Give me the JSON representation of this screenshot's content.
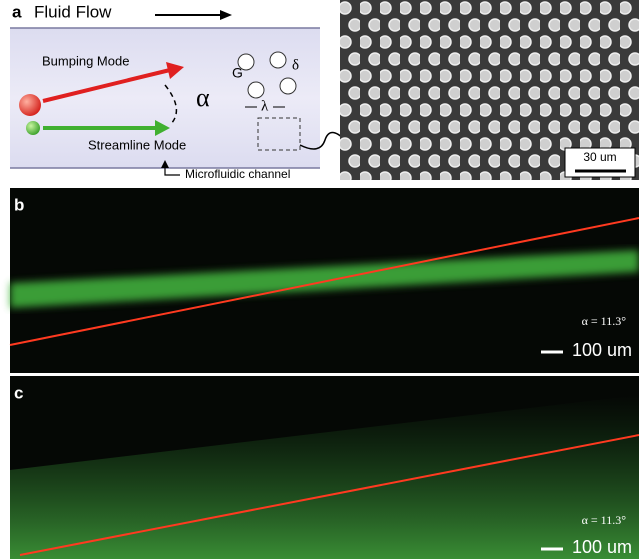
{
  "panel_a": {
    "label": "a",
    "title": "Fluid Flow",
    "bumping_mode": "Bumping Mode",
    "streamline_mode": "Streamline Mode",
    "angle": "α",
    "gap": "G",
    "offset": "δ",
    "pitch": "λ",
    "channel": "Microfluidic channel",
    "scale_bar": "30 um"
  },
  "panel_b": {
    "label": "b",
    "angle_text": "α = 11.3°",
    "scale_bar": "100 um"
  },
  "panel_c": {
    "label": "c",
    "angle_text": "α = 11.3°",
    "scale_bar": "100 um"
  }
}
